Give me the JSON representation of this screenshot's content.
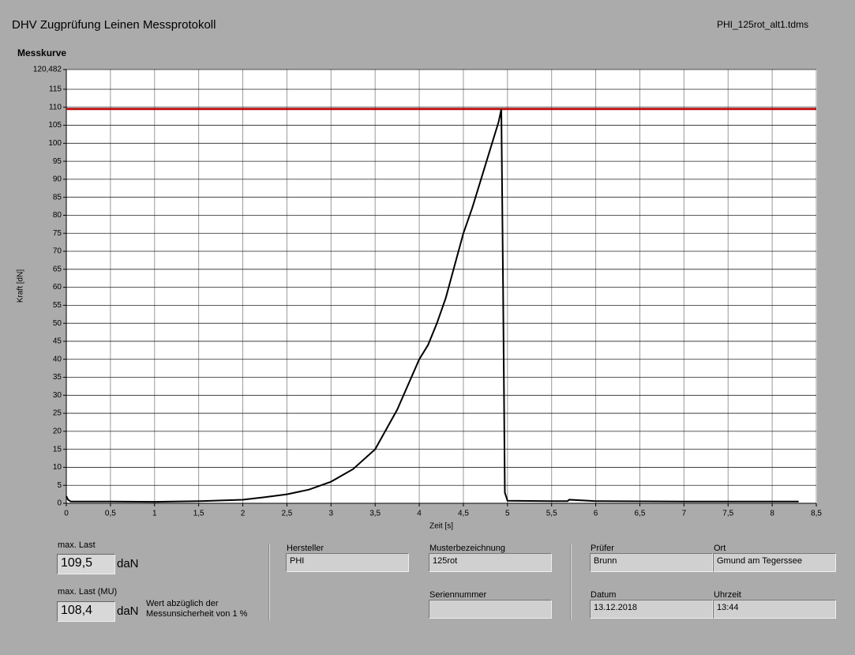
{
  "header": {
    "title": "DHV Zugprüfung Leinen Messprotokoll",
    "filename": "PHI_125rot_alt1.tdms"
  },
  "chart_data": {
    "type": "line",
    "title": "Messkurve",
    "x_label": "Zeit [s]",
    "y_label": "Kraft [dN]",
    "xlim": [
      0,
      8.5
    ],
    "ylim": [
      0,
      120.482
    ],
    "xticks": [
      0,
      {
        "value": 0.5,
        "label": "0,5"
      },
      1,
      {
        "value": 1.5,
        "label": "1,5"
      },
      2,
      {
        "value": 2.5,
        "label": "2,5"
      },
      3,
      {
        "value": 3.5,
        "label": "3,5"
      },
      4,
      {
        "value": 4.5,
        "label": "4,5"
      },
      5,
      {
        "value": 5.5,
        "label": "5,5"
      },
      6,
      {
        "value": 6.5,
        "label": "6,5"
      },
      7,
      {
        "value": 7.5,
        "label": "7,5"
      },
      8,
      {
        "value": 8.5,
        "label": "8,5"
      }
    ],
    "yticks": [
      0,
      5,
      10,
      15,
      20,
      25,
      30,
      35,
      40,
      45,
      50,
      55,
      60,
      65,
      70,
      75,
      80,
      85,
      90,
      95,
      100,
      105,
      110,
      115,
      {
        "value": 120.482,
        "label": "120,482"
      }
    ],
    "x": [
      0,
      0.02,
      0.05,
      0.5,
      1,
      1.5,
      2,
      2.25,
      2.5,
      2.75,
      3,
      3.25,
      3.5,
      3.75,
      4,
      4.1,
      4.2,
      4.3,
      4.4,
      4.5,
      4.6,
      4.7,
      4.8,
      4.9,
      4.93,
      4.95,
      4.97,
      5,
      5.5,
      5.68,
      5.7,
      6,
      7,
      8,
      8.3
    ],
    "series": [
      {
        "color": "#000000",
        "values": [
          2,
          1,
          0.5,
          0.5,
          0.4,
          0.6,
          1,
          1.7,
          2.5,
          3.8,
          6,
          9.5,
          15,
          26,
          40,
          44,
          50,
          57,
          66,
          75,
          82,
          90,
          98,
          106,
          109.5,
          60,
          3,
          0.7,
          0.6,
          0.6,
          1,
          0.6,
          0.5,
          0.5,
          0.5
        ]
      }
    ],
    "max_line": {
      "value": 109.5,
      "color": "#c00000"
    },
    "grid": true
  },
  "panel": {
    "max_load": {
      "label": "max. Last",
      "value": "109,5",
      "unit": "daN"
    },
    "max_load_mu": {
      "label": "max. Last (MU)",
      "value": "108,4",
      "unit": "daN",
      "note": "Wert abzüglich der Messunsicherheit von 1 %"
    },
    "fields": [
      {
        "label": "Hersteller",
        "value": "PHI"
      },
      {
        "label": "Musterbezeichnung",
        "value": "125rot"
      },
      {
        "label": "Seriennummer"
      },
      {
        "label": "Prüfer",
        "value": "Brunn"
      },
      {
        "label": "Ort",
        "value": "Gmund am Tegerssee"
      },
      {
        "label": "Datum",
        "value": "13.12.2018"
      },
      {
        "label": "Uhrzeit",
        "value": "13:44"
      }
    ]
  }
}
